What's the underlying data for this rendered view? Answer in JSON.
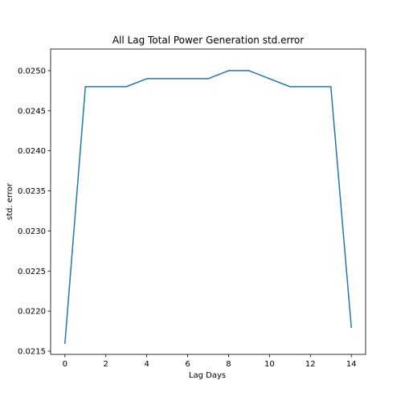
{
  "chart_data": {
    "type": "line",
    "title": "All Lag Total Power Generation std.error",
    "xlabel": "Lag Days",
    "ylabel": "std. error",
    "xlim": [
      -0.7,
      14.7
    ],
    "ylim": [
      0.02146,
      0.02527
    ],
    "xticks": [
      0,
      2,
      4,
      6,
      8,
      10,
      12,
      14
    ],
    "yticks": [
      0.0215,
      0.022,
      0.0225,
      0.023,
      0.0235,
      0.024,
      0.0245,
      0.025
    ],
    "ytick_labels": [
      "0.0215",
      "0.0220",
      "0.0225",
      "0.0230",
      "0.0235",
      "0.0240",
      "0.0245",
      "0.0250"
    ],
    "grid": false,
    "series": [
      {
        "color": "#1f77b4",
        "x": [
          0,
          1,
          2,
          3,
          4,
          5,
          6,
          7,
          8,
          9,
          10,
          11,
          12,
          13,
          14
        ],
        "y": [
          0.0216,
          0.0248,
          0.0248,
          0.0248,
          0.0249,
          0.0249,
          0.0249,
          0.0249,
          0.025,
          0.025,
          0.0249,
          0.0248,
          0.0248,
          0.0248,
          0.0218
        ]
      }
    ]
  }
}
